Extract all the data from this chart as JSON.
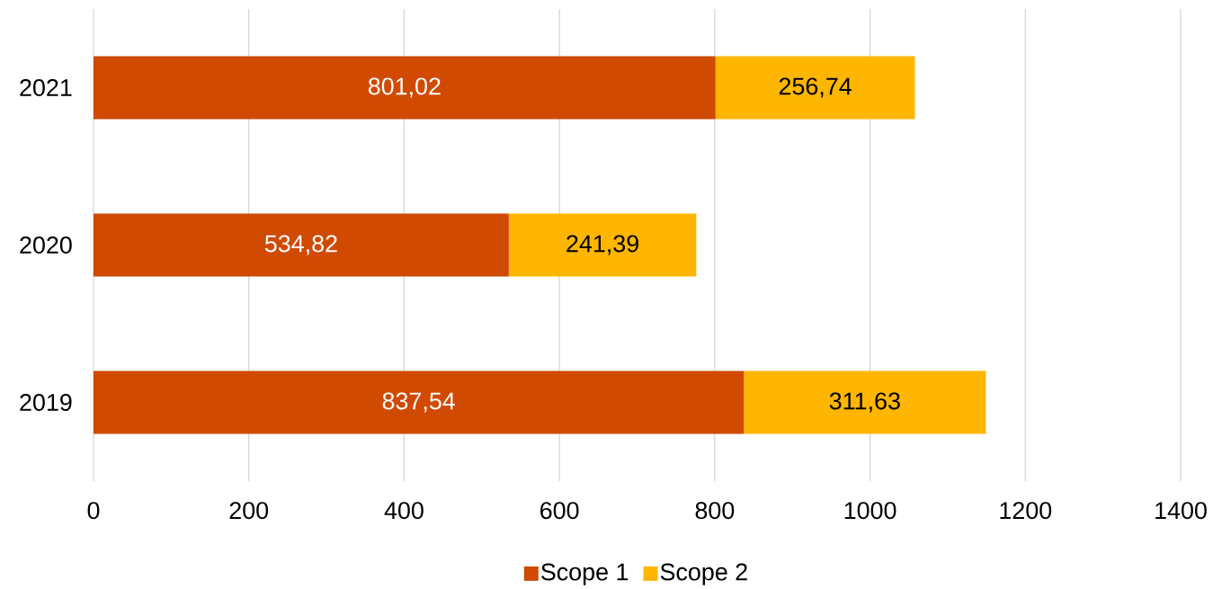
{
  "chart_data": {
    "type": "bar",
    "orientation": "horizontal",
    "stacked": true,
    "categories": [
      "2021",
      "2020",
      "2019"
    ],
    "series": [
      {
        "name": "Scope 1",
        "color": "#d04a02",
        "values": [
          801.02,
          534.82,
          837.54
        ],
        "value_labels": [
          "801,02",
          "534,82",
          "837,54"
        ]
      },
      {
        "name": "Scope 2",
        "color": "#ffb600",
        "values": [
          256.74,
          241.39,
          311.63
        ],
        "value_labels": [
          "256,74",
          "241,39",
          "311,63"
        ]
      }
    ],
    "xlim": [
      0,
      1400
    ],
    "xticks": [
      0,
      200,
      400,
      600,
      800,
      1000,
      1200,
      1400
    ],
    "grid": "x",
    "legend": "bottom"
  }
}
